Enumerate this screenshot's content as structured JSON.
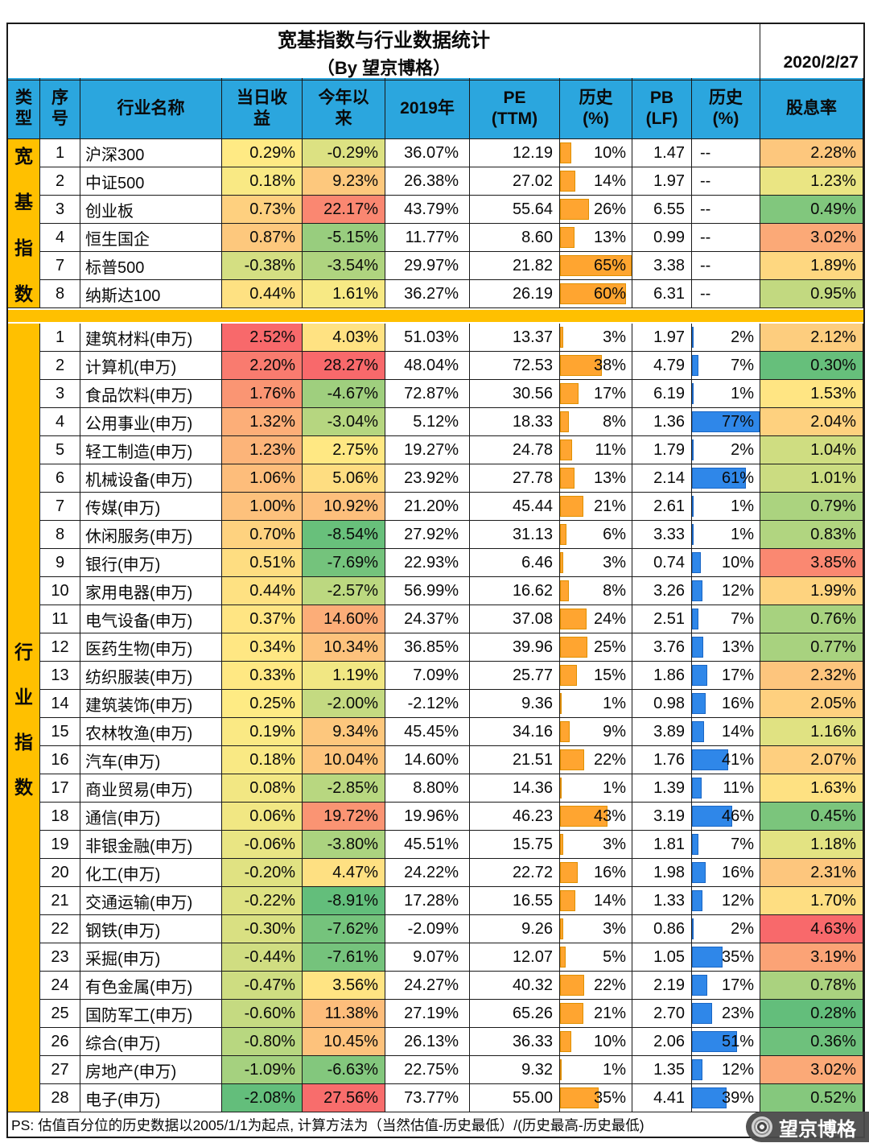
{
  "meta": {
    "title_line1": "宽基指数与行业数据统计",
    "title_line2": "（By 望京博格）",
    "date": "2020/2/27"
  },
  "columns": {
    "type": "类\n型",
    "no": "序\n号",
    "name": "行业名称",
    "daily": "当日收\n益",
    "ytd": "今年以\n来",
    "y2019": "2019年",
    "pe": "PE\n(TTM)",
    "pe_hist": "历史\n(%)",
    "pb": "PB\n(LF)",
    "pb_hist": "历史\n(%)",
    "div": "股息率"
  },
  "chart_data": {
    "type": "table",
    "title": "宽基指数与行业数据统计（By 望京博格）",
    "date": "2020/2/27",
    "column_headers": [
      "类型",
      "序号",
      "行业名称",
      "当日收益",
      "今年以来",
      "2019年",
      "PE (TTM)",
      "历史 (%)",
      "PB (LF)",
      "历史 (%)",
      "股息率"
    ],
    "conditional_formatting": {
      "color_scale_columns": [
        "daily",
        "ytd",
        "div"
      ],
      "data_bar_columns": {
        "pe_hist": "orange",
        "pb_hist": "blue"
      }
    },
    "sections": [
      {
        "type_label": "宽基指数",
        "rows": [
          {
            "no": "1",
            "name": "沪深300",
            "daily": 0.29,
            "ytd": -0.29,
            "y2019": 36.07,
            "pe": 12.19,
            "pe_hist": 10,
            "pb": 1.47,
            "pb_hist": null,
            "div": 2.28
          },
          {
            "no": "2",
            "name": "中证500",
            "daily": 0.18,
            "ytd": 9.23,
            "y2019": 26.38,
            "pe": 27.02,
            "pe_hist": 14,
            "pb": 1.97,
            "pb_hist": null,
            "div": 1.23
          },
          {
            "no": "3",
            "name": "创业板",
            "daily": 0.73,
            "ytd": 22.17,
            "y2019": 43.79,
            "pe": 55.64,
            "pe_hist": 26,
            "pb": 6.55,
            "pb_hist": null,
            "div": 0.49
          },
          {
            "no": "4",
            "name": "恒生国企",
            "daily": 0.87,
            "ytd": -5.15,
            "y2019": 11.77,
            "pe": 8.6,
            "pe_hist": 13,
            "pb": 0.99,
            "pb_hist": null,
            "div": 3.02
          },
          {
            "no": "7",
            "name": "标普500",
            "daily": -0.38,
            "ytd": -3.54,
            "y2019": 29.97,
            "pe": 21.82,
            "pe_hist": 65,
            "pb": 3.38,
            "pb_hist": null,
            "div": 1.89
          },
          {
            "no": "8",
            "name": "纳斯达100",
            "daily": 0.44,
            "ytd": 1.61,
            "y2019": 36.27,
            "pe": 26.19,
            "pe_hist": 60,
            "pb": 6.31,
            "pb_hist": null,
            "div": 0.95
          }
        ]
      },
      {
        "type_label": "行业指数",
        "rows": [
          {
            "no": "1",
            "name": "建筑材料(申万)",
            "daily": 2.52,
            "ytd": 4.03,
            "y2019": 51.03,
            "pe": 13.37,
            "pe_hist": 3,
            "pb": 1.97,
            "pb_hist": 2,
            "div": 2.12
          },
          {
            "no": "2",
            "name": "计算机(申万)",
            "daily": 2.2,
            "ytd": 28.27,
            "y2019": 48.04,
            "pe": 72.53,
            "pe_hist": 38,
            "pb": 4.79,
            "pb_hist": 7,
            "div": 0.3
          },
          {
            "no": "3",
            "name": "食品饮料(申万)",
            "daily": 1.76,
            "ytd": -4.67,
            "y2019": 72.87,
            "pe": 30.56,
            "pe_hist": 17,
            "pb": 6.19,
            "pb_hist": 1,
            "div": 1.53
          },
          {
            "no": "4",
            "name": "公用事业(申万)",
            "daily": 1.32,
            "ytd": -3.04,
            "y2019": 5.12,
            "pe": 18.33,
            "pe_hist": 8,
            "pb": 1.36,
            "pb_hist": 77,
            "div": 2.04
          },
          {
            "no": "5",
            "name": "轻工制造(申万)",
            "daily": 1.23,
            "ytd": 2.75,
            "y2019": 19.27,
            "pe": 24.78,
            "pe_hist": 11,
            "pb": 1.79,
            "pb_hist": 2,
            "div": 1.04
          },
          {
            "no": "6",
            "name": "机械设备(申万)",
            "daily": 1.06,
            "ytd": 5.06,
            "y2019": 23.92,
            "pe": 27.78,
            "pe_hist": 13,
            "pb": 2.14,
            "pb_hist": 61,
            "div": 1.01
          },
          {
            "no": "7",
            "name": "传媒(申万)",
            "daily": 1.0,
            "ytd": 10.92,
            "y2019": 21.2,
            "pe": 45.44,
            "pe_hist": 21,
            "pb": 2.61,
            "pb_hist": 1,
            "div": 0.79
          },
          {
            "no": "8",
            "name": "休闲服务(申万)",
            "daily": 0.7,
            "ytd": -8.54,
            "y2019": 27.92,
            "pe": 31.13,
            "pe_hist": 6,
            "pb": 3.33,
            "pb_hist": 1,
            "div": 0.83
          },
          {
            "no": "9",
            "name": "银行(申万)",
            "daily": 0.51,
            "ytd": -7.69,
            "y2019": 22.93,
            "pe": 6.46,
            "pe_hist": 3,
            "pb": 0.74,
            "pb_hist": 10,
            "div": 3.85
          },
          {
            "no": "10",
            "name": "家用电器(申万)",
            "daily": 0.44,
            "ytd": -2.57,
            "y2019": 56.99,
            "pe": 16.62,
            "pe_hist": 8,
            "pb": 3.26,
            "pb_hist": 12,
            "div": 1.99
          },
          {
            "no": "11",
            "name": "电气设备(申万)",
            "daily": 0.37,
            "ytd": 14.6,
            "y2019": 24.37,
            "pe": 37.08,
            "pe_hist": 24,
            "pb": 2.51,
            "pb_hist": 7,
            "div": 0.76
          },
          {
            "no": "12",
            "name": "医药生物(申万)",
            "daily": 0.34,
            "ytd": 10.34,
            "y2019": 36.85,
            "pe": 39.96,
            "pe_hist": 25,
            "pb": 3.76,
            "pb_hist": 13,
            "div": 0.77
          },
          {
            "no": "13",
            "name": "纺织服装(申万)",
            "daily": 0.33,
            "ytd": 1.19,
            "y2019": 7.09,
            "pe": 25.77,
            "pe_hist": 15,
            "pb": 1.86,
            "pb_hist": 17,
            "div": 2.32
          },
          {
            "no": "14",
            "name": "建筑装饰(申万)",
            "daily": 0.25,
            "ytd": -2.0,
            "y2019": -2.12,
            "pe": 9.36,
            "pe_hist": 1,
            "pb": 0.98,
            "pb_hist": 16,
            "div": 2.05
          },
          {
            "no": "15",
            "name": "农林牧渔(申万)",
            "daily": 0.19,
            "ytd": 9.34,
            "y2019": 45.45,
            "pe": 34.16,
            "pe_hist": 9,
            "pb": 3.89,
            "pb_hist": 14,
            "div": 1.16
          },
          {
            "no": "16",
            "name": "汽车(申万)",
            "daily": 0.18,
            "ytd": 10.04,
            "y2019": 14.6,
            "pe": 21.51,
            "pe_hist": 22,
            "pb": 1.76,
            "pb_hist": 41,
            "div": 2.07
          },
          {
            "no": "17",
            "name": "商业贸易(申万)",
            "daily": 0.08,
            "ytd": -2.85,
            "y2019": 8.8,
            "pe": 14.36,
            "pe_hist": 1,
            "pb": 1.39,
            "pb_hist": 11,
            "div": 1.63
          },
          {
            "no": "18",
            "name": "通信(申万)",
            "daily": 0.06,
            "ytd": 19.72,
            "y2019": 19.96,
            "pe": 46.23,
            "pe_hist": 43,
            "pb": 3.19,
            "pb_hist": 46,
            "div": 0.45
          },
          {
            "no": "19",
            "name": "非银金融(申万)",
            "daily": -0.06,
            "ytd": -3.8,
            "y2019": 45.51,
            "pe": 15.75,
            "pe_hist": 3,
            "pb": 1.81,
            "pb_hist": 7,
            "div": 1.18
          },
          {
            "no": "20",
            "name": "化工(申万)",
            "daily": -0.2,
            "ytd": 4.47,
            "y2019": 24.22,
            "pe": 22.72,
            "pe_hist": 16,
            "pb": 1.98,
            "pb_hist": 16,
            "div": 2.31
          },
          {
            "no": "21",
            "name": "交通运输(申万)",
            "daily": -0.22,
            "ytd": -8.91,
            "y2019": 17.28,
            "pe": 16.55,
            "pe_hist": 14,
            "pb": 1.33,
            "pb_hist": 12,
            "div": 1.7
          },
          {
            "no": "22",
            "name": "钢铁(申万)",
            "daily": -0.3,
            "ytd": -7.62,
            "y2019": -2.09,
            "pe": 9.26,
            "pe_hist": 3,
            "pb": 0.86,
            "pb_hist": 2,
            "div": 4.63
          },
          {
            "no": "23",
            "name": "采掘(申万)",
            "daily": -0.44,
            "ytd": -7.61,
            "y2019": 9.07,
            "pe": 12.07,
            "pe_hist": 5,
            "pb": 1.05,
            "pb_hist": 35,
            "div": 3.19
          },
          {
            "no": "24",
            "name": "有色金属(申万)",
            "daily": -0.47,
            "ytd": 3.56,
            "y2019": 24.27,
            "pe": 40.32,
            "pe_hist": 22,
            "pb": 2.19,
            "pb_hist": 17,
            "div": 0.78
          },
          {
            "no": "25",
            "name": "国防军工(申万)",
            "daily": -0.6,
            "ytd": 11.38,
            "y2019": 27.19,
            "pe": 65.26,
            "pe_hist": 21,
            "pb": 2.7,
            "pb_hist": 23,
            "div": 0.28
          },
          {
            "no": "26",
            "name": "综合(申万)",
            "daily": -0.8,
            "ytd": 10.45,
            "y2019": 26.13,
            "pe": 36.33,
            "pe_hist": 10,
            "pb": 2.06,
            "pb_hist": 51,
            "div": 0.36
          },
          {
            "no": "27",
            "name": "房地产(申万)",
            "daily": -1.09,
            "ytd": -6.63,
            "y2019": 22.75,
            "pe": 9.32,
            "pe_hist": 1,
            "pb": 1.35,
            "pb_hist": 12,
            "div": 3.02
          },
          {
            "no": "28",
            "name": "电子(申万)",
            "daily": -2.08,
            "ytd": 27.56,
            "y2019": 73.77,
            "pe": 55.0,
            "pe_hist": 35,
            "pb": 4.41,
            "pb_hist": 39,
            "div": 0.52
          }
        ]
      }
    ]
  },
  "footer": {
    "note": "PS:  估值百分位的历史数据以2005/1/1为起点, 计算方法为（当然估值-历史最低）/(历史最高-历史最低)",
    "watermark": "望京博格"
  },
  "colors": {
    "header_bg": "#2BA6DE",
    "type_bg": "#FFC000",
    "separator_bg": "#FFC000",
    "scale_red": "#F8696B",
    "scale_yellow": "#FFEB84",
    "scale_green": "#63BE7B",
    "bar_orange": "#FFA530",
    "bar_blue": "#2F87E9",
    "watermark_bg": "#4A4A4A"
  }
}
